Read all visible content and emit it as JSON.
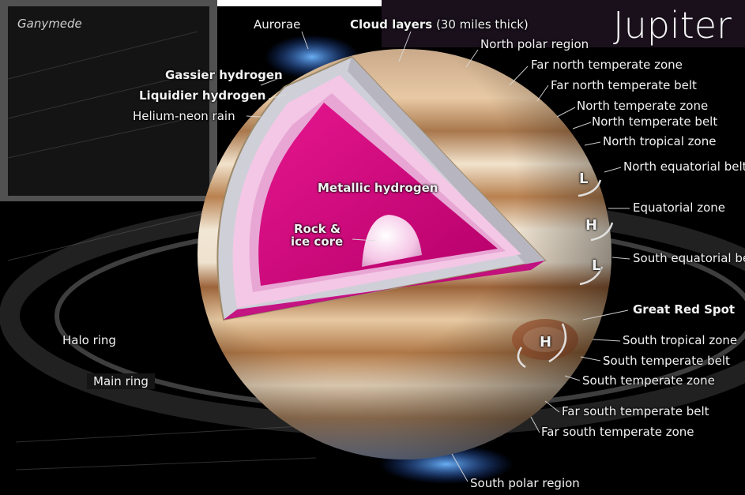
{
  "title": "Jupiter",
  "moon_label": "Ganymede",
  "interior_labels": {
    "aurorae": "Aurorae",
    "cloud_layers_bold": "Cloud layers",
    "cloud_layers_thickness": " (30 miles thick)",
    "gassier_hydrogen": "Gassier hydrogen",
    "liquidier_hydrogen": "Liquidier hydrogen",
    "helium_neon_rain": "Helium-neon rain",
    "metallic_hydrogen": "Metallic hydrogen",
    "core_line1": "Rock &",
    "core_line2": "ice core"
  },
  "atmosphere_labels": [
    "North polar region",
    "Far north temperate zone",
    "Far north temperate belt",
    "North temperate zone",
    "North temperate belt",
    "North tropical zone",
    "North equatorial belt",
    "Equatorial zone",
    "South equatorial belt",
    "Great Red Spot",
    "South tropical zone",
    "South temperate belt",
    "South temperate zone",
    "Far south temperate belt",
    "Far south temperate zone",
    "South polar region"
  ],
  "ring_labels": {
    "halo_ring": "Halo ring",
    "main_ring": "Main ring"
  },
  "vortex_markers": [
    "L",
    "H",
    "L",
    "H"
  ],
  "colors": {
    "metallic_hydrogen": "#e8108a",
    "planet_band_light": "#f3e2c8",
    "planet_band_dark": "#b77c4a",
    "aurora": "#2f7fff",
    "background": "#000000"
  }
}
